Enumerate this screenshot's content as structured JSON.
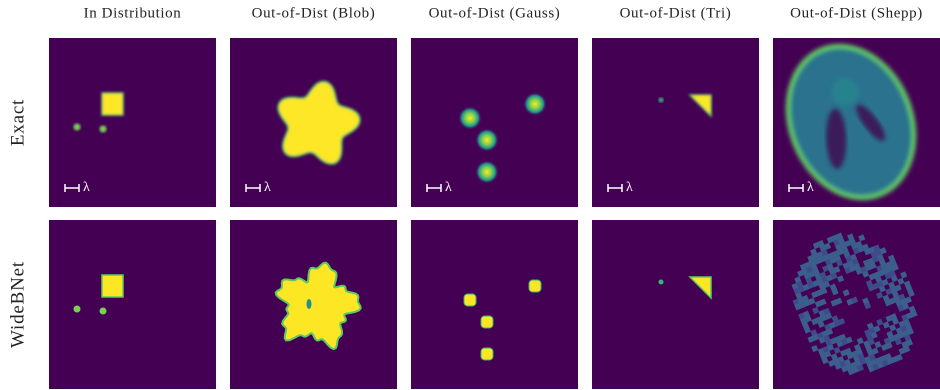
{
  "columns": [
    "In Distribution",
    "Out-of-Dist (Blob)",
    "Out-of-Dist (Gauss)",
    "Out-of-Dist (Tri)",
    "Out-of-Dist (Shepp)"
  ],
  "rows": [
    "Exact",
    "WideBNet"
  ],
  "scale_label": "λ"
}
